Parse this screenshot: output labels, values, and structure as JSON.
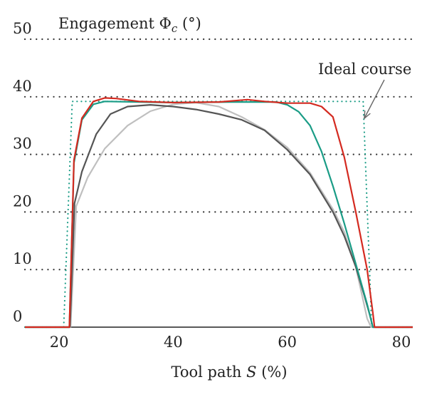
{
  "chart_data": {
    "type": "line",
    "title": "",
    "ylabel": "Engagement Φ",
    "ylabel_sub": "c",
    "ylabel_unit": " (°)",
    "xlabel_prefix": "Tool path ",
    "xlabel_var": "S",
    "xlabel_unit": " (%)",
    "xlim": [
      14,
      82
    ],
    "ylim": [
      0,
      50
    ],
    "xticks": [
      20,
      40,
      60,
      80
    ],
    "yticks": [
      0,
      10,
      20,
      30,
      40,
      50
    ],
    "grid": "horizontal dotted",
    "annotation": {
      "text": "Ideal course",
      "points_to": [
        73,
        36
      ]
    },
    "series": [
      {
        "color": "#1a9c86",
        "style": "dotted",
        "points": [
          [
            14,
            0
          ],
          [
            20.8,
            0
          ],
          [
            22.3,
            39.2
          ],
          [
            73.3,
            39.2
          ],
          [
            74.8,
            0
          ],
          [
            82,
            0
          ]
        ]
      },
      {
        "color": "#bfbfbf",
        "style": "solid",
        "points": [
          [
            14,
            0
          ],
          [
            22,
            0
          ],
          [
            23,
            21
          ],
          [
            25,
            26
          ],
          [
            28,
            31
          ],
          [
            32,
            35
          ],
          [
            36,
            37.5
          ],
          [
            40,
            38.7
          ],
          [
            44,
            39
          ],
          [
            48,
            38.3
          ],
          [
            52,
            36.5
          ],
          [
            56,
            34.3
          ],
          [
            60,
            31.2
          ],
          [
            64,
            26.8
          ],
          [
            68,
            20.5
          ],
          [
            70,
            16.5
          ],
          [
            72,
            10.5
          ],
          [
            73,
            6
          ],
          [
            74,
            1.5
          ],
          [
            74.7,
            0
          ],
          [
            82,
            0
          ]
        ]
      },
      {
        "color": "#555555",
        "style": "solid",
        "points": [
          [
            14,
            0
          ],
          [
            21.9,
            0
          ],
          [
            22.7,
            21.5
          ],
          [
            24,
            27
          ],
          [
            26.5,
            33.5
          ],
          [
            29,
            37
          ],
          [
            32,
            38.3
          ],
          [
            36,
            38.6
          ],
          [
            40,
            38.3
          ],
          [
            44,
            37.8
          ],
          [
            48,
            37
          ],
          [
            52,
            36
          ],
          [
            56,
            34.2
          ],
          [
            60,
            30.8
          ],
          [
            64,
            26.5
          ],
          [
            68,
            20
          ],
          [
            70,
            15.8
          ],
          [
            72,
            10.5
          ],
          [
            73.5,
            5.5
          ],
          [
            74.5,
            2
          ],
          [
            75,
            0
          ],
          [
            82,
            0
          ]
        ]
      },
      {
        "color": "#1a9c86",
        "style": "solid",
        "points": [
          [
            14,
            0
          ],
          [
            21.8,
            0
          ],
          [
            22.6,
            28.5
          ],
          [
            24,
            36
          ],
          [
            26,
            38.7
          ],
          [
            28,
            39.2
          ],
          [
            40,
            39
          ],
          [
            50,
            39.1
          ],
          [
            58,
            39.1
          ],
          [
            60,
            38.6
          ],
          [
            62,
            37.4
          ],
          [
            64,
            35
          ],
          [
            66,
            30.5
          ],
          [
            68,
            24.5
          ],
          [
            70,
            18
          ],
          [
            72,
            11
          ],
          [
            74,
            4
          ],
          [
            75,
            0
          ],
          [
            82,
            0
          ]
        ]
      },
      {
        "color": "#d42a20",
        "style": "solid",
        "points": [
          [
            14,
            0
          ],
          [
            21.8,
            0
          ],
          [
            22.6,
            29
          ],
          [
            24,
            36.3
          ],
          [
            26,
            39.2
          ],
          [
            28,
            39.8
          ],
          [
            30,
            39.7
          ],
          [
            34,
            39.2
          ],
          [
            40,
            39
          ],
          [
            48,
            39.1
          ],
          [
            53,
            39.5
          ],
          [
            56,
            39.2
          ],
          [
            60,
            38.9
          ],
          [
            64,
            38.9
          ],
          [
            66,
            38.3
          ],
          [
            68,
            36.5
          ],
          [
            70,
            29.5
          ],
          [
            72,
            20
          ],
          [
            74,
            10
          ],
          [
            75,
            2.5
          ],
          [
            75.3,
            0
          ],
          [
            82,
            0
          ]
        ]
      }
    ]
  }
}
